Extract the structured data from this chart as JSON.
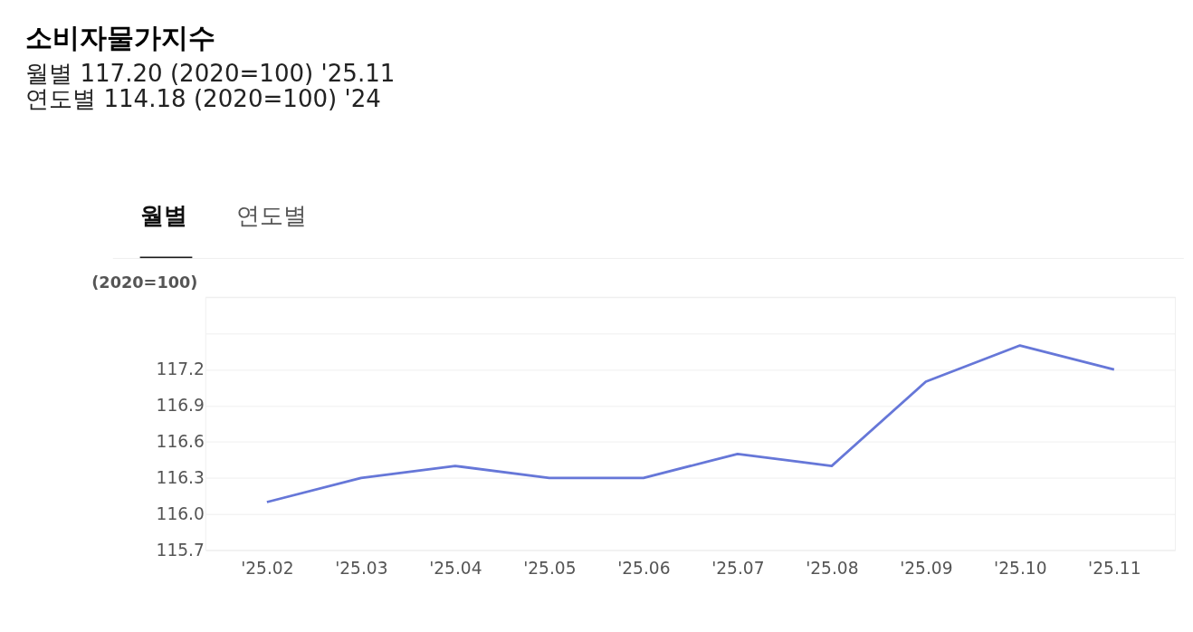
{
  "chart_data": {
    "type": "line",
    "title": "소비자물가지수",
    "subtitle": [
      "월별 117.20 (2020=100) '25.11",
      "연도별 114.18 (2020=100) '24"
    ],
    "annotations": [
      "월별",
      "연도별"
    ],
    "ylabel": "(2020=100)",
    "categories": [
      "'25.02",
      "'25.03",
      "'25.04",
      "'25.05",
      "'25.06",
      "'25.07",
      "'25.08",
      "'25.09",
      "'25.10",
      "'25.11"
    ],
    "series": [
      {
        "color": "#6677d8",
        "values": [
          116.1,
          116.3,
          116.4,
          116.3,
          116.3,
          116.5,
          116.4,
          117.1,
          117.4,
          117.2
        ]
      }
    ],
    "ylim": [
      115.7,
      117.8
    ],
    "yticks": [
      {
        "value": 115.7,
        "label": "115.7"
      },
      {
        "value": 116.0,
        "label": "116.0"
      },
      {
        "value": 116.3,
        "label": "116.3"
      },
      {
        "value": 116.6,
        "label": "116.6"
      },
      {
        "value": 116.9,
        "label": "116.9"
      },
      {
        "value": 117.2,
        "label": "117.2"
      },
      {
        "value": 117.5,
        "label": null
      },
      {
        "value": 117.8,
        "label": null
      }
    ],
    "grid": "y",
    "marker": "none",
    "line_style": "solid"
  }
}
